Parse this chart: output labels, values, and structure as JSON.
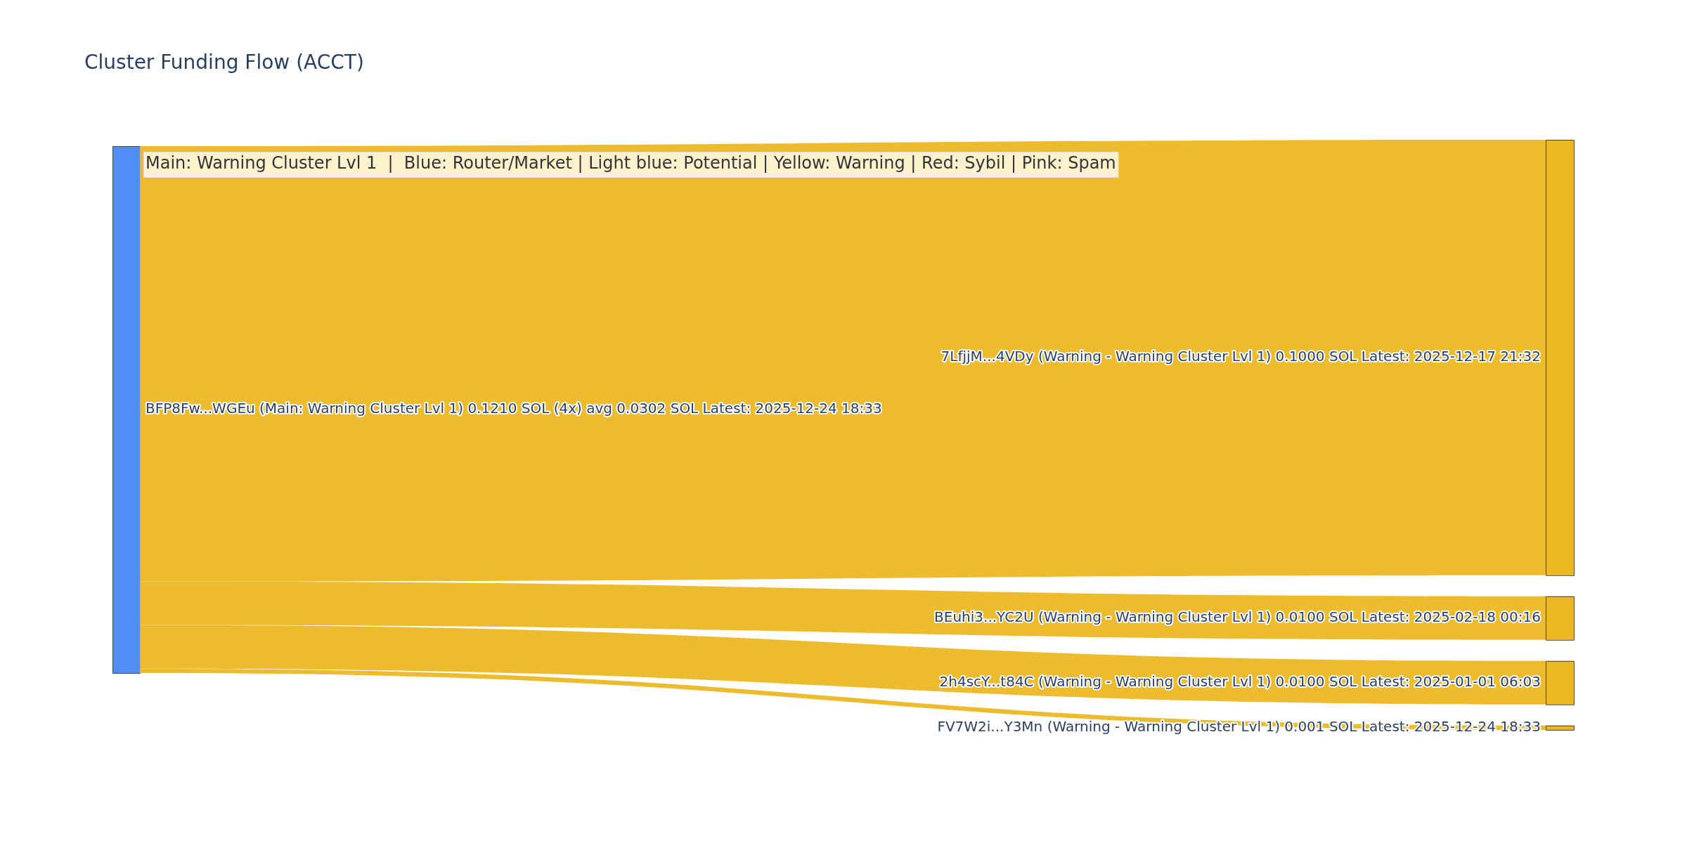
{
  "chart_data": {
    "type": "other",
    "title": "Cluster Funding Flow (ACCT)",
    "categories": [
      "BFP8Fw...WGEu (Main: Warning Cluster Lvl 1)",
      "7LfjjM...4VDy (Warning - Warning Cluster Lvl 1)",
      "BEuhi3...YC2U (Warning - Warning Cluster Lvl 1)",
      "2h4scY...t84C (Warning - Warning Cluster Lvl 1)",
      "FV7W2i...Y3Mn (Warning - Warning Cluster Lvl 1)"
    ],
    "values": [
      0.121,
      0.1,
      0.01,
      0.01,
      0.001
    ],
    "value_labels": [
      "0.1210 SOL (4x) avg 0.0302 SOL Latest: 2025-12-24 18:33",
      "0.1000 SOL Latest: 2025-12-17 21:32",
      "0.0100 SOL Latest: 2025-02-18 00:16",
      "0.0100 SOL Latest: 2025-01-01 06:03",
      "0.001 SOL Latest: 2025-12-24 18:33"
    ],
    "annotations": [
      "Main: Warning Cluster Lvl 1  |  Blue: Router/Market | Light blue: Potential | Yellow: Warning | Red: Sybil | Pink: Spam"
    ]
  }
}
